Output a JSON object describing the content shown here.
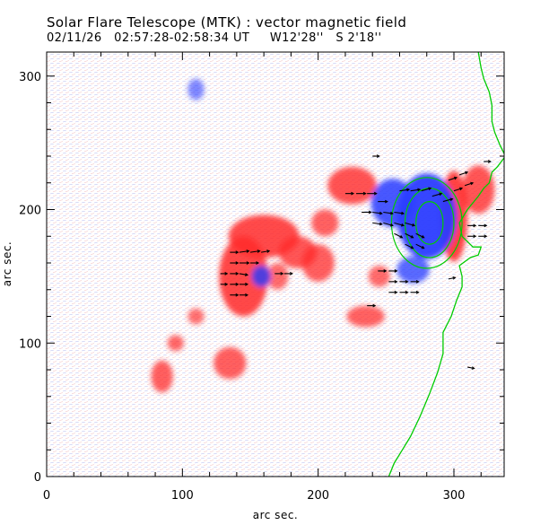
{
  "header": {
    "title": "Solar Flare Telescope (MTK) : vector magnetic field",
    "subtitle": "02/11/26   02:57:28-02:58:34 UT     W12'28''   S 2'18''"
  },
  "chart_data": {
    "type": "heatmap",
    "xlabel": "arc sec.",
    "ylabel": "arc sec.",
    "xlim": [
      0,
      337
    ],
    "ylim": [
      0,
      318
    ],
    "x_ticks": [
      0,
      100,
      200,
      300
    ],
    "y_ticks": [
      0,
      100,
      200,
      300
    ],
    "x_tick_labels": [
      "0",
      "100",
      "200",
      "300"
    ],
    "y_tick_labels": [
      "0",
      "100",
      "200",
      "300"
    ],
    "grid": false,
    "colors": {
      "positive_polarity": "#ff2a2a",
      "negative_polarity": "#2a3cff",
      "limb_contour": "#00cc00",
      "transverse_arrows": "#000000"
    },
    "positive_regions": [
      {
        "x": 145,
        "y": 150,
        "rx": 18,
        "ry": 30,
        "strength": 0.9
      },
      {
        "x": 160,
        "y": 180,
        "rx": 26,
        "ry": 16,
        "strength": 0.85
      },
      {
        "x": 185,
        "y": 168,
        "rx": 14,
        "ry": 12,
        "strength": 0.7
      },
      {
        "x": 200,
        "y": 160,
        "rx": 12,
        "ry": 14,
        "strength": 0.6
      },
      {
        "x": 225,
        "y": 218,
        "rx": 18,
        "ry": 14,
        "strength": 0.75
      },
      {
        "x": 205,
        "y": 190,
        "rx": 10,
        "ry": 10,
        "strength": 0.5
      },
      {
        "x": 300,
        "y": 195,
        "rx": 10,
        "ry": 34,
        "strength": 0.95
      },
      {
        "x": 318,
        "y": 215,
        "rx": 12,
        "ry": 18,
        "strength": 0.7
      },
      {
        "x": 135,
        "y": 85,
        "rx": 12,
        "ry": 12,
        "strength": 0.55
      },
      {
        "x": 85,
        "y": 75,
        "rx": 8,
        "ry": 12,
        "strength": 0.6
      },
      {
        "x": 95,
        "y": 100,
        "rx": 6,
        "ry": 6,
        "strength": 0.45
      },
      {
        "x": 235,
        "y": 120,
        "rx": 14,
        "ry": 8,
        "strength": 0.5
      },
      {
        "x": 245,
        "y": 150,
        "rx": 8,
        "ry": 8,
        "strength": 0.4
      },
      {
        "x": 110,
        "y": 120,
        "rx": 6,
        "ry": 6,
        "strength": 0.35
      },
      {
        "x": 170,
        "y": 150,
        "rx": 8,
        "ry": 10,
        "strength": 0.4
      }
    ],
    "negative_regions": [
      {
        "x": 280,
        "y": 195,
        "rx": 22,
        "ry": 32,
        "strength": 1.0
      },
      {
        "x": 255,
        "y": 205,
        "rx": 16,
        "ry": 18,
        "strength": 0.8
      },
      {
        "x": 270,
        "y": 155,
        "rx": 12,
        "ry": 10,
        "strength": 0.6
      },
      {
        "x": 158,
        "y": 150,
        "rx": 7,
        "ry": 8,
        "strength": 0.7
      },
      {
        "x": 110,
        "y": 290,
        "rx": 6,
        "ry": 8,
        "strength": 0.25
      }
    ],
    "limb_contour": [
      [
        252,
        0
      ],
      [
        256,
        10
      ],
      [
        262,
        20
      ],
      [
        268,
        30
      ],
      [
        275,
        45
      ],
      [
        282,
        62
      ],
      [
        288,
        78
      ],
      [
        292,
        92
      ],
      [
        292,
        108
      ],
      [
        298,
        120
      ],
      [
        302,
        132
      ],
      [
        306,
        142
      ],
      [
        306,
        150
      ],
      [
        304,
        158
      ],
      [
        312,
        164
      ],
      [
        318,
        166
      ],
      [
        320,
        172
      ],
      [
        314,
        172
      ],
      [
        306,
        180
      ],
      [
        304,
        190
      ],
      [
        310,
        200
      ],
      [
        318,
        210
      ],
      [
        322,
        216
      ],
      [
        326,
        220
      ],
      [
        328,
        228
      ],
      [
        332,
        232
      ],
      [
        338,
        240
      ],
      [
        334,
        248
      ],
      [
        330,
        258
      ],
      [
        328,
        266
      ],
      [
        328,
        278
      ],
      [
        326,
        288
      ],
      [
        322,
        298
      ],
      [
        320,
        306
      ],
      [
        318,
        318
      ]
    ],
    "contour_loops": [
      {
        "x": 282,
        "y": 190,
        "rx": 10,
        "ry": 16
      },
      {
        "x": 282,
        "y": 190,
        "rx": 18,
        "ry": 26
      },
      {
        "x": 280,
        "y": 190,
        "rx": 26,
        "ry": 34
      }
    ],
    "transverse_field": [
      {
        "x": 135,
        "y": 168,
        "dx": 6,
        "dy": 0
      },
      {
        "x": 142,
        "y": 168,
        "dx": 7,
        "dy": 1
      },
      {
        "x": 150,
        "y": 168,
        "dx": 7,
        "dy": 1
      },
      {
        "x": 158,
        "y": 168,
        "dx": 6,
        "dy": 1
      },
      {
        "x": 135,
        "y": 160,
        "dx": 6,
        "dy": 0
      },
      {
        "x": 142,
        "y": 160,
        "dx": 7,
        "dy": 0
      },
      {
        "x": 150,
        "y": 160,
        "dx": 6,
        "dy": 0
      },
      {
        "x": 135,
        "y": 152,
        "dx": 6,
        "dy": 0
      },
      {
        "x": 142,
        "y": 152,
        "dx": 6,
        "dy": -1
      },
      {
        "x": 135,
        "y": 144,
        "dx": 6,
        "dy": 0
      },
      {
        "x": 142,
        "y": 144,
        "dx": 6,
        "dy": 0
      },
      {
        "x": 135,
        "y": 136,
        "dx": 6,
        "dy": 0
      },
      {
        "x": 142,
        "y": 136,
        "dx": 6,
        "dy": 0
      },
      {
        "x": 128,
        "y": 152,
        "dx": 5,
        "dy": 0
      },
      {
        "x": 128,
        "y": 144,
        "dx": 5,
        "dy": 0
      },
      {
        "x": 168,
        "y": 152,
        "dx": 6,
        "dy": 0
      },
      {
        "x": 175,
        "y": 152,
        "dx": 6,
        "dy": 0
      },
      {
        "x": 220,
        "y": 212,
        "dx": 6,
        "dy": 0
      },
      {
        "x": 228,
        "y": 212,
        "dx": 7,
        "dy": 0
      },
      {
        "x": 236,
        "y": 212,
        "dx": 7,
        "dy": 0
      },
      {
        "x": 244,
        "y": 206,
        "dx": 7,
        "dy": 0
      },
      {
        "x": 240,
        "y": 198,
        "dx": 7,
        "dy": -1
      },
      {
        "x": 248,
        "y": 198,
        "dx": 7,
        "dy": -1
      },
      {
        "x": 256,
        "y": 198,
        "dx": 7,
        "dy": -1
      },
      {
        "x": 248,
        "y": 190,
        "dx": 7,
        "dy": -2
      },
      {
        "x": 256,
        "y": 190,
        "dx": 7,
        "dy": -2
      },
      {
        "x": 264,
        "y": 190,
        "dx": 7,
        "dy": -2
      },
      {
        "x": 256,
        "y": 182,
        "dx": 6,
        "dy": -3
      },
      {
        "x": 264,
        "y": 182,
        "dx": 6,
        "dy": -3
      },
      {
        "x": 272,
        "y": 182,
        "dx": 6,
        "dy": -3
      },
      {
        "x": 264,
        "y": 174,
        "dx": 6,
        "dy": -3
      },
      {
        "x": 272,
        "y": 174,
        "dx": 6,
        "dy": -3
      },
      {
        "x": 240,
        "y": 190,
        "dx": 7,
        "dy": -1
      },
      {
        "x": 232,
        "y": 198,
        "dx": 7,
        "dy": 0
      },
      {
        "x": 260,
        "y": 214,
        "dx": 7,
        "dy": 1
      },
      {
        "x": 268,
        "y": 214,
        "dx": 7,
        "dy": 1
      },
      {
        "x": 276,
        "y": 214,
        "dx": 7,
        "dy": 2
      },
      {
        "x": 284,
        "y": 210,
        "dx": 7,
        "dy": 2
      },
      {
        "x": 292,
        "y": 206,
        "dx": 7,
        "dy": 2
      },
      {
        "x": 300,
        "y": 214,
        "dx": 6,
        "dy": 2
      },
      {
        "x": 308,
        "y": 218,
        "dx": 6,
        "dy": 2
      },
      {
        "x": 296,
        "y": 222,
        "dx": 6,
        "dy": 2
      },
      {
        "x": 304,
        "y": 226,
        "dx": 6,
        "dy": 2
      },
      {
        "x": 252,
        "y": 146,
        "dx": 6,
        "dy": 0
      },
      {
        "x": 260,
        "y": 146,
        "dx": 6,
        "dy": 0
      },
      {
        "x": 268,
        "y": 146,
        "dx": 6,
        "dy": 0
      },
      {
        "x": 252,
        "y": 138,
        "dx": 6,
        "dy": 0
      },
      {
        "x": 260,
        "y": 138,
        "dx": 6,
        "dy": 0
      },
      {
        "x": 268,
        "y": 138,
        "dx": 6,
        "dy": 0
      },
      {
        "x": 244,
        "y": 154,
        "dx": 6,
        "dy": 0
      },
      {
        "x": 252,
        "y": 154,
        "dx": 6,
        "dy": 0
      },
      {
        "x": 236,
        "y": 128,
        "dx": 6,
        "dy": 0
      },
      {
        "x": 310,
        "y": 180,
        "dx": 6,
        "dy": 0
      },
      {
        "x": 318,
        "y": 180,
        "dx": 6,
        "dy": 0
      },
      {
        "x": 310,
        "y": 188,
        "dx": 6,
        "dy": 0
      },
      {
        "x": 318,
        "y": 188,
        "dx": 6,
        "dy": 0
      },
      {
        "x": 322,
        "y": 236,
        "dx": 5,
        "dy": 0
      },
      {
        "x": 240,
        "y": 240,
        "dx": 5,
        "dy": 0
      },
      {
        "x": 310,
        "y": 82,
        "dx": 5,
        "dy": -1
      },
      {
        "x": 296,
        "y": 148,
        "dx": 5,
        "dy": 1
      }
    ]
  }
}
